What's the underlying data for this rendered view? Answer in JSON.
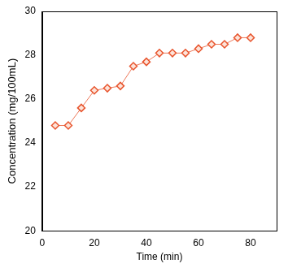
{
  "chart_data": {
    "type": "line",
    "x_label": "Time (min)",
    "y_label": "Concentration (mg/100mL)",
    "x": [
      5,
      10,
      15,
      20,
      25,
      30,
      35,
      40,
      45,
      50,
      55,
      60,
      65,
      70,
      75,
      80
    ],
    "values": [
      24.8,
      24.8,
      25.6,
      26.4,
      26.5,
      26.6,
      27.5,
      27.7,
      28.1,
      28.1,
      28.1,
      28.3,
      28.5,
      28.5,
      28.8,
      28.8
    ],
    "color": "#e8552e",
    "marker": "diamond",
    "xlim": [
      0,
      90
    ],
    "xticks": [
      0,
      20,
      40,
      60,
      80
    ],
    "ylim": [
      20,
      30
    ],
    "yticks": [
      20,
      22,
      24,
      26,
      28,
      30
    ],
    "grid": false
  }
}
